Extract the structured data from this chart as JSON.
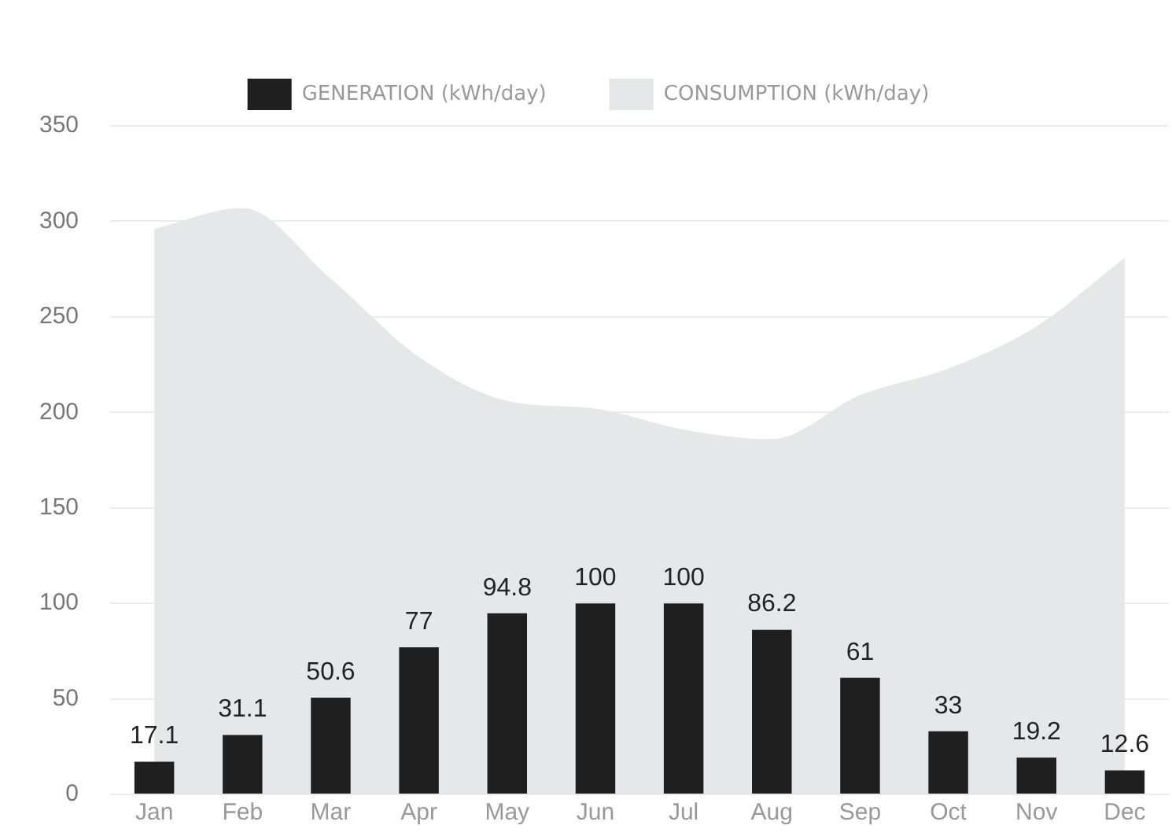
{
  "chart_data": {
    "type": "bar",
    "categories": [
      "Jan",
      "Feb",
      "Mar",
      "Apr",
      "May",
      "Jun",
      "Jul",
      "Aug",
      "Sep",
      "Oct",
      "Nov",
      "Dec"
    ],
    "series": [
      {
        "name": "GENERATION (kWh/day)",
        "color": "#1f1f1f",
        "values": [
          17.1,
          31.1,
          50.6,
          77,
          94.8,
          100,
          100,
          86.2,
          61,
          33,
          19.2,
          12.6
        ],
        "value_labels": [
          "17.1",
          "31.1",
          "50.6",
          "77",
          "94.8",
          "100",
          "100",
          "86.2",
          "61",
          "33",
          "19.2",
          "12.6"
        ]
      },
      {
        "name": "CONSUMPTION (kWh/day)",
        "type": "area",
        "color": "#e6e7e9",
        "values": [
          296,
          307,
          270,
          229,
          206,
          202,
          191,
          186,
          209,
          223,
          245,
          281
        ]
      }
    ],
    "ylim": [
      0,
      350
    ],
    "yticks": [
      0,
      50,
      100,
      150,
      200,
      250,
      300,
      350
    ],
    "grid": "y",
    "legend": "top"
  }
}
